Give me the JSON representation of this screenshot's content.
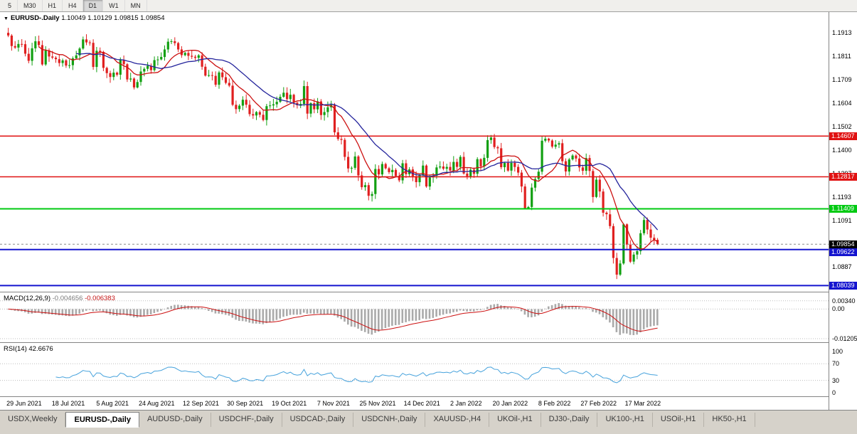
{
  "toolbar": {
    "timeframes": [
      "5",
      "M30",
      "H1",
      "H4",
      "D1",
      "W1",
      "MN"
    ],
    "active": "D1"
  },
  "chart": {
    "menu_icon": "▼",
    "title": "EURUSD-.Daily",
    "ohlc": "1.10049 1.10129 1.09815 1.09854"
  },
  "indicators": {
    "macd": {
      "name": "MACD(12,26,9)",
      "v1": "-0.004656",
      "v2": "-0.006383"
    },
    "rsi": {
      "name": "RSI(14)",
      "value": "42.6676"
    }
  },
  "tabs": {
    "active_index": 1,
    "items": [
      "USDX,Weekly",
      "EURUSD-,Daily",
      "AUDUSD-,Daily",
      "USDCHF-,Daily",
      "USDCAD-,Daily",
      "USDCNH-,Daily",
      "XAUUSD-,H4",
      "UKOil-,H1",
      "DJ30-,Daily",
      "UK100-,H1",
      "USOil-,H1",
      "HK50-,H1"
    ]
  },
  "colors": {
    "bull": "#12a012",
    "bear": "#e02020",
    "ma_fast": "#cc1010",
    "ma_slow": "#24249c",
    "macd_hist": "#aaaaaa",
    "macd_signal": "#cc1010",
    "rsi_line": "#46a2dc",
    "level_red": "#e01212",
    "level_green": "#00ca12",
    "level_blue": "#1414cf",
    "tag_black": "#000000",
    "grid_dotted": "#bdbdbd",
    "bid_dashed": "#8a8a8a"
  },
  "chart_data": {
    "type": "candlestick",
    "symbol": "EURUSD-",
    "timeframe": "Daily",
    "current_candle": {
      "open": 1.10049,
      "high": 1.10129,
      "low": 1.09815,
      "close": 1.09854
    },
    "closes": [
      1.1902,
      1.1856,
      1.1849,
      1.1865,
      1.1864,
      1.1822,
      1.1791,
      1.1846,
      1.1877,
      1.186,
      1.1775,
      1.1837,
      1.181,
      1.1805,
      1.1798,
      1.1781,
      1.1793,
      1.177,
      1.1772,
      1.1802,
      1.1815,
      1.1845,
      1.1885,
      1.1872,
      1.187,
      1.1764,
      1.1835,
      1.183,
      1.176,
      1.1737,
      1.172,
      1.1739,
      1.173,
      1.1794,
      1.1776,
      1.1709,
      1.1713,
      1.1674,
      1.1698,
      1.1744,
      1.1756,
      1.1769,
      1.175,
      1.1794,
      1.1797,
      1.1808,
      1.1841,
      1.1875,
      1.1877,
      1.1869,
      1.1841,
      1.1816,
      1.1826,
      1.1813,
      1.1809,
      1.1804,
      1.1815,
      1.1765,
      1.1726,
      1.1728,
      1.1725,
      1.1686,
      1.174,
      1.1719,
      1.1694,
      1.1682,
      1.1598,
      1.1579,
      1.1594,
      1.162,
      1.1598,
      1.1557,
      1.1551,
      1.1566,
      1.1554,
      1.1531,
      1.1592,
      1.1595,
      1.16,
      1.1611,
      1.1633,
      1.1651,
      1.1623,
      1.1642,
      1.1607,
      1.1596,
      1.1602,
      1.168,
      1.1559,
      1.1605,
      1.1578,
      1.1613,
      1.1553,
      1.1566,
      1.1587,
      1.1598,
      1.1477,
      1.1448,
      1.1444,
      1.1369,
      1.1318,
      1.1321,
      1.1371,
      1.1288,
      1.1236,
      1.1245,
      1.1198,
      1.1206,
      1.1316,
      1.1292,
      1.1338,
      1.1319,
      1.1302,
      1.1312,
      1.1285,
      1.1266,
      1.1341,
      1.1293,
      1.1314,
      1.1284,
      1.1258,
      1.1288,
      1.1331,
      1.1239,
      1.1279,
      1.1286,
      1.1323,
      1.1327,
      1.1317,
      1.1325,
      1.1309,
      1.1347,
      1.1325,
      1.1369,
      1.1296,
      1.1284,
      1.1313,
      1.1295,
      1.1359,
      1.1327,
      1.1365,
      1.1443,
      1.1454,
      1.1412,
      1.1407,
      1.1324,
      1.1343,
      1.1309,
      1.1343,
      1.1325,
      1.13,
      1.1239,
      1.1144,
      1.1149,
      1.1234,
      1.1272,
      1.1304,
      1.144,
      1.1449,
      1.1441,
      1.1414,
      1.1423,
      1.1429,
      1.135,
      1.1305,
      1.1358,
      1.1375,
      1.1362,
      1.1323,
      1.1308,
      1.1364,
      1.1307,
      1.1193,
      1.1269,
      1.1217,
      1.1124,
      1.1117,
      1.1065,
      1.0925,
      1.0852,
      1.0901,
      1.1073,
      1.0984,
      1.0909,
      1.094,
      1.0955,
      1.1034,
      1.1092,
      1.105,
      1.1014,
      1.1003,
      1.09854
    ],
    "ylim": [
      1.0777,
      1.2005
    ],
    "price_ticks": [
      1.1913,
      1.1811,
      1.1709,
      1.1604,
      1.1502,
      1.14,
      1.1297,
      1.1193,
      1.1091,
      1.099,
      1.0887
    ],
    "levels": [
      {
        "price": 1.14607,
        "color_key": "level_red",
        "width": 1.5
      },
      {
        "price": 1.12817,
        "color_key": "level_red",
        "width": 1.5
      },
      {
        "price": 1.11409,
        "color_key": "level_green",
        "width": 2
      },
      {
        "price": 1.09622,
        "color_key": "level_blue",
        "width": 2
      },
      {
        "price": 1.08039,
        "color_key": "level_blue",
        "width": 2
      }
    ],
    "bid_price": 1.09854,
    "price_tags": [
      {
        "label": "1.14607",
        "price": 1.14607,
        "bg_key": "level_red"
      },
      {
        "label": "1.12817",
        "price": 1.12817,
        "bg_key": "level_red"
      },
      {
        "label": "1.11409",
        "price": 1.11409,
        "bg_key": "level_green"
      },
      {
        "label": "1.09854",
        "price": 1.09854,
        "bg_key": "tag_black"
      },
      {
        "label": "1.09622",
        "price": 1.09622,
        "bg_key": "level_blue"
      },
      {
        "label": "1.08039",
        "price": 1.08039,
        "bg_key": "level_blue"
      }
    ],
    "moving_averages": [
      {
        "period": 10,
        "color_key": "ma_fast"
      },
      {
        "period": 21,
        "color_key": "ma_slow"
      }
    ],
    "date_ticks": [
      {
        "label": "29 Jun 2021",
        "index": 5
      },
      {
        "label": "18 Jul 2021",
        "index": 18
      },
      {
        "label": "5 Aug 2021",
        "index": 31
      },
      {
        "label": "24 Aug 2021",
        "index": 44
      },
      {
        "label": "12 Sep 2021",
        "index": 57
      },
      {
        "label": "30 Sep 2021",
        "index": 70
      },
      {
        "label": "19 Oct 2021",
        "index": 83
      },
      {
        "label": "7 Nov 2021",
        "index": 96
      },
      {
        "label": "25 Nov 2021",
        "index": 109
      },
      {
        "label": "14 Dec 2021",
        "index": 122
      },
      {
        "label": "2 Jan 2022",
        "index": 135
      },
      {
        "label": "20 Jan 2022",
        "index": 148
      },
      {
        "label": "8 Feb 2022",
        "index": 161
      },
      {
        "label": "27 Feb 2022",
        "index": 174
      },
      {
        "label": "17 Mar 2022",
        "index": 187
      }
    ],
    "macd_panel": {
      "params": [
        12,
        26,
        9
      ],
      "current": [
        -0.004656,
        -0.006383
      ],
      "ylim": [
        -0.0135,
        0.0068
      ],
      "ticks": [
        {
          "label": "0.00340",
          "value": 0.0034
        },
        {
          "label": "0.00",
          "value": 0
        },
        {
          "label": "-0.01205",
          "value": -0.01205
        }
      ]
    },
    "rsi_panel": {
      "period": 14,
      "current": 42.6676,
      "ylim": [
        -8.5,
        120.3
      ],
      "level_lines": [
        70,
        30
      ],
      "ticks": [
        {
          "label": "100",
          "value": 100
        },
        {
          "label": "70",
          "value": 70
        },
        {
          "label": "30",
          "value": 30
        },
        {
          "label": "0",
          "value": 0
        }
      ]
    }
  }
}
